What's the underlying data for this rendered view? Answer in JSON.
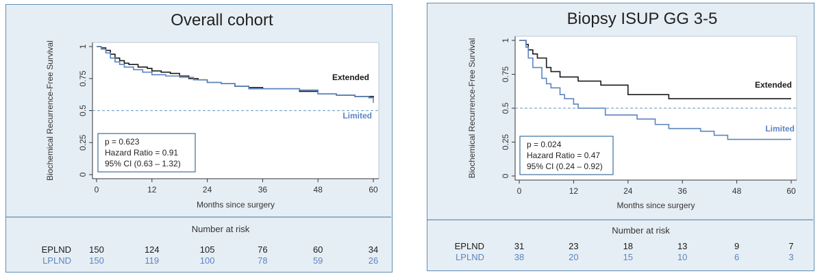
{
  "chart_data": [
    {
      "type": "line",
      "title": "Overall cohort",
      "xlabel": "Months since surgery",
      "ylabel": "Biochemical Recurrence-Free Survival",
      "xlim": [
        0,
        60
      ],
      "ylim": [
        0,
        1
      ],
      "xticks": [
        0,
        12,
        24,
        36,
        48,
        60
      ],
      "yticks": [
        0,
        0.25,
        0.5,
        0.75,
        1
      ],
      "ytick_labels": [
        "0",
        "0.25",
        "0.5",
        "0.75",
        "1"
      ],
      "reference_line": 0.5,
      "series": [
        {
          "name": "Extended",
          "color": "#1a1a1a",
          "x": [
            0,
            1,
            2,
            3,
            4,
            5,
            6,
            7,
            9,
            11,
            12,
            14,
            16,
            18,
            20,
            22,
            24,
            27,
            30,
            33,
            36,
            40,
            44,
            48,
            52,
            56,
            60
          ],
          "y": [
            1,
            0.99,
            0.97,
            0.94,
            0.91,
            0.89,
            0.87,
            0.86,
            0.84,
            0.83,
            0.81,
            0.8,
            0.79,
            0.77,
            0.75,
            0.74,
            0.72,
            0.71,
            0.69,
            0.68,
            0.67,
            0.67,
            0.65,
            0.63,
            0.62,
            0.61,
            0.6
          ]
        },
        {
          "name": "Limited",
          "color": "#5b84c0",
          "x": [
            0,
            1,
            2,
            3,
            4,
            5,
            6,
            8,
            10,
            12,
            15,
            18,
            21,
            24,
            27,
            30,
            33,
            36,
            40,
            44,
            48,
            52,
            56,
            59,
            60
          ],
          "y": [
            1,
            0.98,
            0.95,
            0.91,
            0.88,
            0.86,
            0.84,
            0.82,
            0.8,
            0.78,
            0.77,
            0.76,
            0.74,
            0.72,
            0.71,
            0.69,
            0.67,
            0.67,
            0.67,
            0.66,
            0.63,
            0.62,
            0.61,
            0.6,
            0.56
          ]
        }
      ],
      "stats": {
        "p": "p = 0.623",
        "hr": "Hazard Ratio = 0.91",
        "ci": "95% CI (0.63 – 1.32)"
      },
      "risk_table": {
        "title": "Number at risk",
        "rows": [
          {
            "label": "EPLND",
            "color": "#1a1a1a",
            "values": [
              150,
              124,
              105,
              76,
              60,
              34
            ]
          },
          {
            "label": "LPLND",
            "color": "#5b84c0",
            "values": [
              150,
              119,
              100,
              78,
              59,
              26
            ]
          }
        ]
      }
    },
    {
      "type": "line",
      "title": "Biopsy ISUP GG 3-5",
      "xlabel": "Months since surgery",
      "ylabel": "Biochemical Recurrence-Free Survival",
      "xlim": [
        0,
        60
      ],
      "ylim": [
        0,
        1
      ],
      "xticks": [
        0,
        12,
        24,
        36,
        48,
        60
      ],
      "yticks": [
        0,
        0.25,
        0.5,
        0.75,
        1
      ],
      "ytick_labels": [
        "0",
        "0.25",
        "0.5",
        "0.75",
        "1"
      ],
      "reference_line": 0.5,
      "series": [
        {
          "name": "Extended",
          "color": "#1a1a1a",
          "x": [
            0,
            1.5,
            2,
            3,
            4,
            6,
            7,
            9,
            13,
            18,
            24,
            33,
            60
          ],
          "y": [
            1,
            0.97,
            0.93,
            0.9,
            0.87,
            0.8,
            0.77,
            0.73,
            0.7,
            0.67,
            0.6,
            0.57,
            0.57
          ]
        },
        {
          "name": "Limited",
          "color": "#5b84c0",
          "x": [
            0,
            1.5,
            2,
            3,
            5,
            6,
            7,
            9,
            10,
            12,
            13,
            19,
            24,
            26,
            30,
            33,
            40,
            43,
            46,
            60
          ],
          "y": [
            1,
            0.95,
            0.87,
            0.8,
            0.72,
            0.68,
            0.65,
            0.6,
            0.57,
            0.53,
            0.5,
            0.45,
            0.45,
            0.42,
            0.38,
            0.35,
            0.33,
            0.3,
            0.27,
            0.27
          ]
        }
      ],
      "stats": {
        "p": "p = 0.024",
        "hr": "Hazard Ratio = 0.47",
        "ci": "95% CI (0.24 – 0.92)"
      },
      "risk_table": {
        "title": "Number at risk",
        "rows": [
          {
            "label": "EPLND",
            "color": "#1a1a1a",
            "values": [
              31,
              23,
              18,
              13,
              9,
              7
            ]
          },
          {
            "label": "LPLND",
            "color": "#5b84c0",
            "values": [
              38,
              20,
              15,
              10,
              6,
              3
            ]
          }
        ]
      }
    }
  ]
}
